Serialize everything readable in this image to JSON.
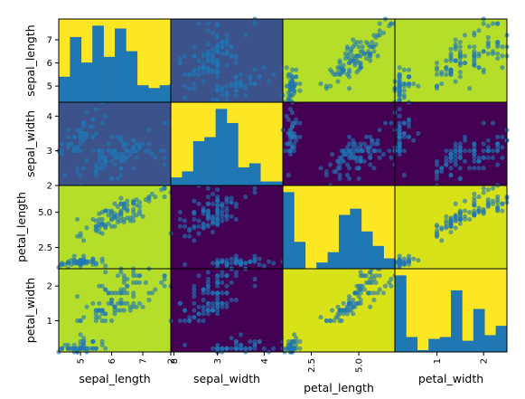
{
  "chart_data": {
    "type": "scatter",
    "variables": [
      "sepal_length",
      "sepal_width",
      "petal_length",
      "petal_width"
    ],
    "ranges": {
      "sepal_length": [
        4.3,
        7.9
      ],
      "sepal_width": [
        2.0,
        4.4
      ],
      "petal_length": [
        1.0,
        6.9
      ],
      "petal_width": [
        0.1,
        2.5
      ]
    },
    "ticks": {
      "sepal_length": [
        "5",
        "6",
        "7"
      ],
      "sepal_width": [
        "2",
        "3",
        "4"
      ],
      "petal_length": [
        "2.5",
        "5.0"
      ],
      "petal_width": [
        "1",
        "2"
      ]
    },
    "left_tick_overrides": {
      "0": [
        "5",
        "6",
        "7"
      ]
    },
    "bottom_tick_overrides": {
      "0": [
        "5",
        "6",
        "7",
        "8"
      ]
    },
    "histograms": {
      "sepal_length": [
        9,
        23,
        14,
        27,
        16,
        26,
        18,
        6,
        5,
        6
      ],
      "sepal_width": [
        4,
        7,
        22,
        24,
        38,
        31,
        9,
        11,
        2,
        2
      ],
      "petal_length": [
        37,
        13,
        0,
        3,
        8,
        26,
        29,
        18,
        11,
        5
      ],
      "petal_width": [
        41,
        8,
        1,
        7,
        8,
        33,
        6,
        23,
        9,
        14
      ]
    },
    "background_colors": [
      [
        "#fde725",
        "#3b528b",
        "#b5de2b",
        "#b5de2b"
      ],
      [
        "#3b528b",
        "#fde725",
        "#440154",
        "#440154"
      ],
      [
        "#b5de2b",
        "#440154",
        "#fde725",
        "#d8e219"
      ],
      [
        "#b5de2b",
        "#440154",
        "#d8e219",
        "#fde725"
      ]
    ],
    "point_color": "#1f77b4",
    "points": [
      [
        5.1,
        3.5,
        1.4,
        0.2
      ],
      [
        4.9,
        3.0,
        1.4,
        0.2
      ],
      [
        4.7,
        3.2,
        1.3,
        0.2
      ],
      [
        4.6,
        3.1,
        1.5,
        0.2
      ],
      [
        5.0,
        3.6,
        1.4,
        0.2
      ],
      [
        5.4,
        3.9,
        1.7,
        0.4
      ],
      [
        4.6,
        3.4,
        1.4,
        0.3
      ],
      [
        5.0,
        3.4,
        1.5,
        0.2
      ],
      [
        4.4,
        2.9,
        1.4,
        0.2
      ],
      [
        4.9,
        3.1,
        1.5,
        0.1
      ],
      [
        5.4,
        3.7,
        1.5,
        0.2
      ],
      [
        4.8,
        3.4,
        1.6,
        0.2
      ],
      [
        4.8,
        3.0,
        1.4,
        0.1
      ],
      [
        4.3,
        3.0,
        1.1,
        0.1
      ],
      [
        5.8,
        4.0,
        1.2,
        0.2
      ],
      [
        5.7,
        4.4,
        1.5,
        0.4
      ],
      [
        5.4,
        3.9,
        1.3,
        0.4
      ],
      [
        5.1,
        3.5,
        1.4,
        0.3
      ],
      [
        5.7,
        3.8,
        1.7,
        0.3
      ],
      [
        5.1,
        3.8,
        1.5,
        0.3
      ],
      [
        5.4,
        3.4,
        1.7,
        0.2
      ],
      [
        5.1,
        3.7,
        1.5,
        0.4
      ],
      [
        4.6,
        3.6,
        1.0,
        0.2
      ],
      [
        5.1,
        3.3,
        1.7,
        0.5
      ],
      [
        4.8,
        3.4,
        1.9,
        0.2
      ],
      [
        5.0,
        3.0,
        1.6,
        0.2
      ],
      [
        5.0,
        3.4,
        1.6,
        0.4
      ],
      [
        5.2,
        3.5,
        1.5,
        0.2
      ],
      [
        5.2,
        3.4,
        1.4,
        0.2
      ],
      [
        4.7,
        3.2,
        1.6,
        0.2
      ],
      [
        4.8,
        3.1,
        1.6,
        0.2
      ],
      [
        5.4,
        3.4,
        1.5,
        0.4
      ],
      [
        5.2,
        4.1,
        1.5,
        0.1
      ],
      [
        5.5,
        4.2,
        1.4,
        0.2
      ],
      [
        4.9,
        3.1,
        1.5,
        0.2
      ],
      [
        5.0,
        3.2,
        1.2,
        0.2
      ],
      [
        5.5,
        3.5,
        1.3,
        0.2
      ],
      [
        4.9,
        3.6,
        1.4,
        0.1
      ],
      [
        4.4,
        3.0,
        1.3,
        0.2
      ],
      [
        5.1,
        3.4,
        1.5,
        0.2
      ],
      [
        5.0,
        3.5,
        1.3,
        0.3
      ],
      [
        4.5,
        2.3,
        1.3,
        0.3
      ],
      [
        4.4,
        3.2,
        1.3,
        0.2
      ],
      [
        5.0,
        3.5,
        1.6,
        0.6
      ],
      [
        5.1,
        3.8,
        1.9,
        0.4
      ],
      [
        4.8,
        3.0,
        1.4,
        0.3
      ],
      [
        5.1,
        3.8,
        1.6,
        0.2
      ],
      [
        4.6,
        3.2,
        1.4,
        0.2
      ],
      [
        5.3,
        3.7,
        1.5,
        0.2
      ],
      [
        5.0,
        3.3,
        1.4,
        0.2
      ],
      [
        7.0,
        3.2,
        4.7,
        1.4
      ],
      [
        6.4,
        3.2,
        4.5,
        1.5
      ],
      [
        6.9,
        3.1,
        4.9,
        1.5
      ],
      [
        5.5,
        2.3,
        4.0,
        1.3
      ],
      [
        6.5,
        2.8,
        4.6,
        1.5
      ],
      [
        5.7,
        2.8,
        4.5,
        1.3
      ],
      [
        6.3,
        3.3,
        4.7,
        1.6
      ],
      [
        4.9,
        2.4,
        3.3,
        1.0
      ],
      [
        6.6,
        2.9,
        4.6,
        1.3
      ],
      [
        5.2,
        2.7,
        3.9,
        1.4
      ],
      [
        5.0,
        2.0,
        3.5,
        1.0
      ],
      [
        5.9,
        3.0,
        4.2,
        1.5
      ],
      [
        6.0,
        2.2,
        4.0,
        1.0
      ],
      [
        6.1,
        2.9,
        4.7,
        1.4
      ],
      [
        5.6,
        2.9,
        3.6,
        1.3
      ],
      [
        6.7,
        3.1,
        4.4,
        1.4
      ],
      [
        5.6,
        3.0,
        4.5,
        1.5
      ],
      [
        5.8,
        2.7,
        4.1,
        1.0
      ],
      [
        6.2,
        2.2,
        4.5,
        1.5
      ],
      [
        5.6,
        2.5,
        3.9,
        1.1
      ],
      [
        5.9,
        3.2,
        4.8,
        1.8
      ],
      [
        6.1,
        2.8,
        4.0,
        1.3
      ],
      [
        6.3,
        2.5,
        4.9,
        1.5
      ],
      [
        6.1,
        2.8,
        4.7,
        1.2
      ],
      [
        6.4,
        2.9,
        4.3,
        1.3
      ],
      [
        6.6,
        3.0,
        4.4,
        1.4
      ],
      [
        6.8,
        2.8,
        4.8,
        1.4
      ],
      [
        6.7,
        3.0,
        5.0,
        1.7
      ],
      [
        6.0,
        2.9,
        4.5,
        1.5
      ],
      [
        5.7,
        2.6,
        3.5,
        1.0
      ],
      [
        5.5,
        2.4,
        3.8,
        1.1
      ],
      [
        5.5,
        2.4,
        3.7,
        1.0
      ],
      [
        5.8,
        2.7,
        3.9,
        1.2
      ],
      [
        6.0,
        2.7,
        5.1,
        1.6
      ],
      [
        5.4,
        3.0,
        4.5,
        1.5
      ],
      [
        6.0,
        3.4,
        4.5,
        1.6
      ],
      [
        6.7,
        3.1,
        4.7,
        1.5
      ],
      [
        6.3,
        2.3,
        4.4,
        1.3
      ],
      [
        5.6,
        3.0,
        4.1,
        1.3
      ],
      [
        5.5,
        2.5,
        4.0,
        1.3
      ],
      [
        5.5,
        2.6,
        4.4,
        1.2
      ],
      [
        6.1,
        3.0,
        4.6,
        1.4
      ],
      [
        5.8,
        2.6,
        4.0,
        1.2
      ],
      [
        5.0,
        2.3,
        3.3,
        1.0
      ],
      [
        5.6,
        2.7,
        4.2,
        1.3
      ],
      [
        5.7,
        3.0,
        4.2,
        1.2
      ],
      [
        5.7,
        2.9,
        4.2,
        1.3
      ],
      [
        6.2,
        2.9,
        4.3,
        1.3
      ],
      [
        5.1,
        2.5,
        3.0,
        1.1
      ],
      [
        5.7,
        2.8,
        4.1,
        1.3
      ],
      [
        6.3,
        3.3,
        6.0,
        2.5
      ],
      [
        5.8,
        2.7,
        5.1,
        1.9
      ],
      [
        7.1,
        3.0,
        5.9,
        2.1
      ],
      [
        6.3,
        2.9,
        5.6,
        1.8
      ],
      [
        6.5,
        3.0,
        5.8,
        2.2
      ],
      [
        7.6,
        3.0,
        6.6,
        2.1
      ],
      [
        4.9,
        2.5,
        4.5,
        1.7
      ],
      [
        7.3,
        2.9,
        6.3,
        1.8
      ],
      [
        6.7,
        2.5,
        5.8,
        1.8
      ],
      [
        7.2,
        3.6,
        6.1,
        2.5
      ],
      [
        6.5,
        3.2,
        5.1,
        2.0
      ],
      [
        6.4,
        2.7,
        5.3,
        1.9
      ],
      [
        6.8,
        3.0,
        5.5,
        2.1
      ],
      [
        5.7,
        2.5,
        5.0,
        2.0
      ],
      [
        5.8,
        2.8,
        5.1,
        2.4
      ],
      [
        6.4,
        3.2,
        5.3,
        2.3
      ],
      [
        6.5,
        3.0,
        5.5,
        1.8
      ],
      [
        7.7,
        3.8,
        6.7,
        2.2
      ],
      [
        7.7,
        2.6,
        6.9,
        2.3
      ],
      [
        6.0,
        2.2,
        5.0,
        1.5
      ],
      [
        6.9,
        3.2,
        5.7,
        2.3
      ],
      [
        5.6,
        2.8,
        4.9,
        2.0
      ],
      [
        7.7,
        2.8,
        6.7,
        2.0
      ],
      [
        6.3,
        2.7,
        4.9,
        1.8
      ],
      [
        6.7,
        3.3,
        5.7,
        2.1
      ],
      [
        7.2,
        3.2,
        6.0,
        1.8
      ],
      [
        6.2,
        2.8,
        4.8,
        1.8
      ],
      [
        6.1,
        3.0,
        4.9,
        1.8
      ],
      [
        6.4,
        2.8,
        5.6,
        2.1
      ],
      [
        7.2,
        3.0,
        5.8,
        1.6
      ],
      [
        7.4,
        2.8,
        6.1,
        1.9
      ],
      [
        7.9,
        3.8,
        6.4,
        2.0
      ],
      [
        6.4,
        2.8,
        5.6,
        2.2
      ],
      [
        6.3,
        2.8,
        5.1,
        1.5
      ],
      [
        6.1,
        2.6,
        5.6,
        1.4
      ],
      [
        7.7,
        3.0,
        6.1,
        2.3
      ],
      [
        6.3,
        3.4,
        5.6,
        2.4
      ],
      [
        6.4,
        3.1,
        5.5,
        1.8
      ],
      [
        6.0,
        3.0,
        4.8,
        1.8
      ],
      [
        6.9,
        3.1,
        5.4,
        2.1
      ],
      [
        6.7,
        3.1,
        5.6,
        2.4
      ],
      [
        6.9,
        3.1,
        5.1,
        2.3
      ],
      [
        5.8,
        2.7,
        5.1,
        1.9
      ],
      [
        6.8,
        3.2,
        5.9,
        2.3
      ],
      [
        6.7,
        3.3,
        5.7,
        2.5
      ],
      [
        6.7,
        3.0,
        5.2,
        2.3
      ],
      [
        6.3,
        2.5,
        5.0,
        1.9
      ],
      [
        6.5,
        3.0,
        5.2,
        2.0
      ],
      [
        6.2,
        3.4,
        5.4,
        2.3
      ],
      [
        5.9,
        3.0,
        5.1,
        1.8
      ]
    ]
  }
}
